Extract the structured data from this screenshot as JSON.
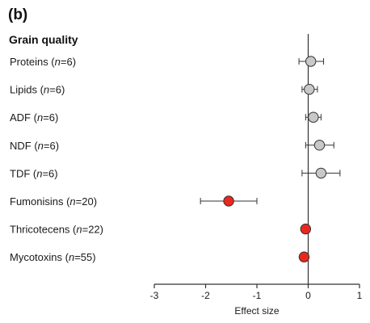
{
  "panel_label": "(b)",
  "colors": {
    "grey_marker": "#c8c8c8",
    "red_marker": "#e8281e",
    "axis": "#333333"
  },
  "chart_data": {
    "type": "scatter",
    "subtype": "forest",
    "section_title": "Grain quality",
    "xlabel": "Effect size",
    "xlim": [
      -3,
      1
    ],
    "x_ticks": [
      "-3",
      "-2",
      "-1",
      "0",
      "1"
    ],
    "grid": false,
    "series": [
      {
        "name": "Proteins",
        "n_label": "n",
        "n_value": "=6)",
        "prefix": "Proteins (",
        "effect": 0.05,
        "ci_low": -0.18,
        "ci_high": 0.3,
        "color": "grey"
      },
      {
        "name": "Lipids",
        "n_label": "n",
        "n_value": "=6)",
        "prefix": "Lipids (",
        "effect": 0.02,
        "ci_low": -0.12,
        "ci_high": 0.18,
        "color": "grey"
      },
      {
        "name": "ADF",
        "n_label": "n",
        "n_value": "=6)",
        "prefix": "ADF (",
        "effect": 0.1,
        "ci_low": -0.05,
        "ci_high": 0.25,
        "color": "grey"
      },
      {
        "name": "NDF",
        "n_label": "n",
        "n_value": "=6)",
        "prefix": "NDF (",
        "effect": 0.22,
        "ci_low": -0.05,
        "ci_high": 0.5,
        "color": "grey"
      },
      {
        "name": "TDF",
        "n_label": "n",
        "n_value": "=6)",
        "prefix": "TDF (",
        "effect": 0.25,
        "ci_low": -0.12,
        "ci_high": 0.62,
        "color": "grey"
      },
      {
        "name": "Fumonisins",
        "n_label": "n",
        "n_value": "=20)",
        "prefix": "Fumonisins (",
        "effect": -1.55,
        "ci_low": -2.1,
        "ci_high": -1.0,
        "color": "red"
      },
      {
        "name": "Thricotecens",
        "n_label": "n",
        "n_value": "=22)",
        "prefix": "Thricotecens (",
        "effect": -0.05,
        "ci_low": null,
        "ci_high": null,
        "color": "red"
      },
      {
        "name": "Mycotoxins",
        "n_label": "n",
        "n_value": "=55)",
        "prefix": "Mycotoxins (",
        "effect": -0.08,
        "ci_low": null,
        "ci_high": null,
        "color": "red"
      }
    ]
  }
}
